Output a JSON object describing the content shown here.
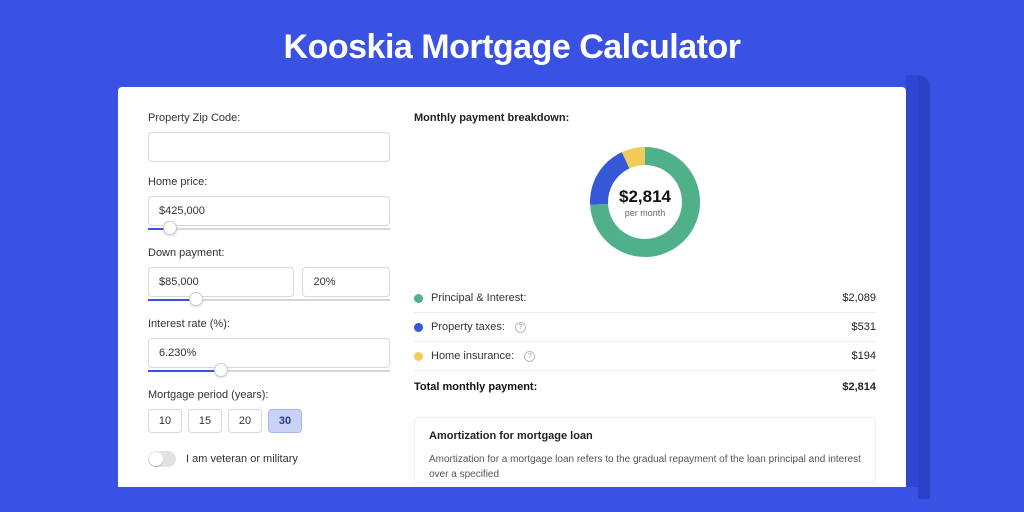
{
  "page": {
    "title": "Kooskia Mortgage Calculator",
    "background_color": "#3952e3",
    "card_background": "#ffffff"
  },
  "form": {
    "zip": {
      "label": "Property Zip Code:",
      "value": ""
    },
    "home_price": {
      "label": "Home price:",
      "value": "$425,000",
      "slider_pct": 9
    },
    "down_payment": {
      "label": "Down payment:",
      "value": "$85,000",
      "pct_value": "20%",
      "slider_pct": 20
    },
    "interest_rate": {
      "label": "Interest rate (%):",
      "value": "6.230%",
      "slider_pct": 30
    },
    "period": {
      "label": "Mortgage period (years):",
      "options": [
        "10",
        "15",
        "20",
        "30"
      ],
      "selected": "30"
    },
    "veteran": {
      "label": "I am veteran or military",
      "checked": false
    }
  },
  "breakdown": {
    "title": "Monthly payment breakdown:",
    "donut": {
      "amount": "$2,814",
      "sub": "per month",
      "segments": [
        {
          "name": "principal_interest",
          "pct": 74.2,
          "color": "#4fb08a"
        },
        {
          "name": "property_taxes",
          "pct": 18.9,
          "color": "#3558d6"
        },
        {
          "name": "home_insurance",
          "pct": 6.9,
          "color": "#f2cc5a"
        }
      ],
      "ring_thickness": 18
    },
    "rows": [
      {
        "label": "Principal & Interest:",
        "value": "$2,089",
        "color": "#4fb08a",
        "info": false
      },
      {
        "label": "Property taxes:",
        "value": "$531",
        "color": "#3558d6",
        "info": true
      },
      {
        "label": "Home insurance:",
        "value": "$194",
        "color": "#f2cc5a",
        "info": true
      }
    ],
    "total": {
      "label": "Total monthly payment:",
      "value": "$2,814"
    }
  },
  "amortization": {
    "title": "Amortization for mortgage loan",
    "text": "Amortization for a mortgage loan refers to the gradual repayment of the loan principal and interest over a specified"
  }
}
